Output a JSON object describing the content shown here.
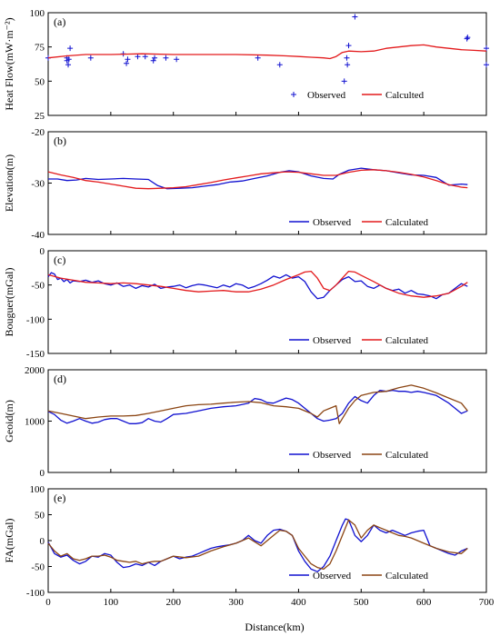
{
  "figure": {
    "xlabel": "Distance(km)",
    "xticks": [
      "0",
      "100",
      "200",
      "300",
      "400",
      "500",
      "600",
      "700"
    ]
  },
  "colors": {
    "observed": "#1010d0",
    "calculated_red": "#e31a1c",
    "calculated_brown": "#8b4513",
    "axis": "#000000"
  },
  "chart_data": [
    {
      "panel": "(a)",
      "type": "scatter",
      "ylabel": "Heat Flow(mW·m⁻²)",
      "xlim": [
        0,
        700
      ],
      "ylim": [
        25,
        100
      ],
      "yticks": [
        25,
        50,
        75,
        100
      ],
      "legend_position": "lower-right",
      "series": [
        {
          "name": "Observed",
          "marker": "plus",
          "color": "#1010d0",
          "x": [
            0,
            30,
            30,
            32,
            33,
            35,
            68,
            120,
            125,
            127,
            143,
            155,
            168,
            170,
            188,
            205,
            335,
            370,
            473,
            477,
            478,
            480,
            490,
            669,
            670,
            700,
            700
          ],
          "y": [
            67,
            67,
            65,
            62,
            66,
            74,
            67,
            70,
            63,
            66,
            68,
            68,
            65,
            67,
            67,
            66,
            67,
            62,
            50,
            67,
            62,
            76,
            97,
            81,
            82,
            74,
            62
          ]
        },
        {
          "name": "Calculted",
          "type": "line",
          "color": "#e31a1c",
          "x": [
            0,
            30,
            60,
            100,
            150,
            200,
            250,
            300,
            350,
            380,
            400,
            420,
            440,
            450,
            460,
            470,
            480,
            500,
            520,
            540,
            560,
            580,
            600,
            620,
            640,
            660,
            680,
            700
          ],
          "y": [
            67,
            68.5,
            69.5,
            69.5,
            70,
            69.5,
            69.5,
            69.5,
            69,
            68.5,
            68,
            67.5,
            67,
            66.5,
            68,
            71,
            72,
            71.5,
            72,
            74,
            75,
            76,
            76.5,
            75,
            74,
            73,
            72.5,
            72
          ]
        }
      ]
    },
    {
      "panel": "(b)",
      "type": "line",
      "ylabel": "Elevation(m)",
      "xlim": [
        0,
        700
      ],
      "ylim": [
        -40,
        -20
      ],
      "yticks": [
        -40,
        -30,
        -20
      ],
      "legend_position": "lower-right",
      "series": [
        {
          "name": "Observed",
          "color": "#1010d0",
          "x": [
            0,
            15,
            30,
            45,
            60,
            80,
            100,
            120,
            140,
            160,
            175,
            190,
            210,
            230,
            250,
            270,
            290,
            310,
            330,
            350,
            370,
            385,
            400,
            420,
            440,
            455,
            465,
            480,
            500,
            520,
            540,
            560,
            580,
            600,
            620,
            640,
            660,
            670
          ],
          "y": [
            -29.2,
            -29.2,
            -29.5,
            -29.4,
            -29.1,
            -29.3,
            -29.2,
            -29.1,
            -29.2,
            -29.3,
            -30.5,
            -31.1,
            -31.0,
            -30.9,
            -30.6,
            -30.3,
            -29.8,
            -29.6,
            -29.1,
            -28.6,
            -27.9,
            -27.6,
            -27.8,
            -28.6,
            -29.1,
            -29.2,
            -28.3,
            -27.5,
            -27.1,
            -27.4,
            -27.6,
            -28.0,
            -28.4,
            -28.5,
            -28.9,
            -30.4,
            -30.2,
            -30.3
          ]
        },
        {
          "name": "Calculated",
          "color": "#e31a1c",
          "x": [
            0,
            20,
            40,
            60,
            80,
            100,
            120,
            140,
            160,
            180,
            200,
            220,
            240,
            260,
            280,
            300,
            320,
            340,
            360,
            380,
            400,
            420,
            440,
            460,
            480,
            500,
            520,
            540,
            560,
            580,
            600,
            620,
            640,
            660,
            670
          ],
          "y": [
            -27.8,
            -28.4,
            -28.9,
            -29.5,
            -29.8,
            -30.2,
            -30.6,
            -31.0,
            -31.1,
            -31.0,
            -30.9,
            -30.7,
            -30.3,
            -29.9,
            -29.4,
            -29.0,
            -28.6,
            -28.2,
            -28.0,
            -27.8,
            -27.9,
            -28.2,
            -28.5,
            -28.5,
            -27.9,
            -27.5,
            -27.4,
            -27.6,
            -27.9,
            -28.3,
            -28.8,
            -29.5,
            -30.3,
            -30.8,
            -30.9
          ]
        }
      ]
    },
    {
      "panel": "(c)",
      "type": "line",
      "ylabel": "Bouguer(mGal)",
      "xlim": [
        0,
        700
      ],
      "ylim": [
        -150,
        0
      ],
      "yticks": [
        -150,
        -100,
        -50,
        0
      ],
      "legend_position": "lower-right",
      "series": [
        {
          "name": "Observed",
          "color": "#1010d0",
          "x": [
            0,
            5,
            10,
            15,
            20,
            25,
            30,
            35,
            40,
            50,
            60,
            70,
            80,
            90,
            100,
            110,
            120,
            130,
            140,
            150,
            160,
            170,
            180,
            190,
            200,
            210,
            220,
            230,
            240,
            250,
            260,
            270,
            280,
            290,
            300,
            310,
            320,
            330,
            340,
            350,
            360,
            370,
            380,
            390,
            400,
            410,
            420,
            430,
            440,
            450,
            460,
            470,
            480,
            490,
            500,
            510,
            520,
            530,
            540,
            550,
            560,
            570,
            580,
            590,
            600,
            610,
            620,
            630,
            640,
            650,
            660,
            670
          ],
          "y": [
            -38,
            -32,
            -34,
            -42,
            -40,
            -45,
            -42,
            -47,
            -44,
            -45,
            -43,
            -46,
            -44,
            -48,
            -50,
            -47,
            -52,
            -50,
            -55,
            -51,
            -53,
            -49,
            -55,
            -53,
            -52,
            -50,
            -54,
            -51,
            -49,
            -50,
            -52,
            -54,
            -50,
            -53,
            -48,
            -50,
            -55,
            -52,
            -48,
            -43,
            -37,
            -40,
            -35,
            -40,
            -38,
            -45,
            -60,
            -70,
            -68,
            -58,
            -50,
            -42,
            -38,
            -45,
            -44,
            -52,
            -55,
            -50,
            -55,
            -58,
            -56,
            -62,
            -58,
            -63,
            -64,
            -66,
            -70,
            -64,
            -62,
            -55,
            -48,
            -52
          ]
        },
        {
          "name": "Calculated",
          "color": "#e31a1c",
          "x": [
            0,
            20,
            40,
            60,
            80,
            100,
            120,
            140,
            160,
            180,
            200,
            220,
            240,
            260,
            280,
            300,
            320,
            340,
            360,
            380,
            400,
            410,
            420,
            430,
            440,
            450,
            460,
            470,
            480,
            490,
            500,
            520,
            540,
            560,
            580,
            600,
            620,
            640,
            660,
            670
          ],
          "y": [
            -35,
            -40,
            -43,
            -46,
            -47,
            -48,
            -47,
            -48,
            -50,
            -52,
            -55,
            -58,
            -60,
            -59,
            -58,
            -60,
            -60,
            -56,
            -50,
            -42,
            -35,
            -31,
            -30,
            -40,
            -55,
            -58,
            -50,
            -40,
            -30,
            -31,
            -36,
            -45,
            -55,
            -62,
            -66,
            -68,
            -66,
            -62,
            -52,
            -46
          ]
        }
      ]
    },
    {
      "panel": "(d)",
      "type": "line",
      "ylabel": "Geoid(m)",
      "xlim": [
        0,
        700
      ],
      "ylim": [
        0,
        2000
      ],
      "yticks": [
        0,
        1000,
        2000
      ],
      "legend_position": "lower-right",
      "series": [
        {
          "name": "Observed",
          "color": "#1010d0",
          "x": [
            0,
            10,
            20,
            30,
            40,
            50,
            60,
            70,
            80,
            90,
            100,
            110,
            120,
            130,
            140,
            150,
            160,
            170,
            180,
            190,
            200,
            220,
            240,
            260,
            280,
            300,
            320,
            330,
            340,
            350,
            360,
            370,
            380,
            390,
            400,
            410,
            420,
            430,
            440,
            450,
            460,
            470,
            480,
            490,
            500,
            510,
            520,
            530,
            540,
            550,
            560,
            570,
            580,
            590,
            600,
            620,
            640,
            660,
            670
          ],
          "y": [
            1190,
            1130,
            1020,
            960,
            1000,
            1050,
            1000,
            960,
            980,
            1030,
            1050,
            1050,
            1000,
            950,
            950,
            970,
            1050,
            1000,
            980,
            1050,
            1130,
            1150,
            1200,
            1250,
            1280,
            1300,
            1350,
            1440,
            1420,
            1360,
            1350,
            1400,
            1450,
            1420,
            1350,
            1250,
            1150,
            1050,
            1000,
            1020,
            1050,
            1150,
            1350,
            1480,
            1400,
            1350,
            1500,
            1600,
            1580,
            1600,
            1580,
            1580,
            1560,
            1580,
            1560,
            1500,
            1350,
            1150,
            1200
          ]
        },
        {
          "name": "Calculated",
          "color": "#8b4513",
          "x": [
            0,
            20,
            40,
            60,
            80,
            100,
            120,
            140,
            160,
            180,
            200,
            220,
            240,
            260,
            280,
            300,
            320,
            340,
            360,
            380,
            400,
            420,
            430,
            440,
            450,
            460,
            465,
            470,
            480,
            490,
            500,
            520,
            540,
            560,
            580,
            600,
            620,
            640,
            660,
            670
          ],
          "y": [
            1200,
            1150,
            1100,
            1050,
            1080,
            1100,
            1100,
            1110,
            1150,
            1200,
            1250,
            1300,
            1320,
            1330,
            1350,
            1370,
            1380,
            1360,
            1300,
            1280,
            1250,
            1150,
            1080,
            1200,
            1250,
            1300,
            950,
            1050,
            1250,
            1400,
            1500,
            1560,
            1580,
            1650,
            1700,
            1640,
            1550,
            1450,
            1350,
            1200
          ]
        }
      ]
    },
    {
      "panel": "(e)",
      "type": "line",
      "ylabel": "FA(mGal)",
      "xlim": [
        0,
        700
      ],
      "ylim": [
        -100,
        100
      ],
      "yticks": [
        -100,
        -50,
        0,
        50,
        100
      ],
      "legend_position": "lower-right",
      "series": [
        {
          "name": "Observed",
          "color": "#1010d0",
          "x": [
            0,
            10,
            20,
            30,
            40,
            50,
            60,
            70,
            80,
            90,
            100,
            110,
            120,
            130,
            140,
            150,
            160,
            170,
            180,
            190,
            200,
            210,
            220,
            230,
            240,
            250,
            260,
            270,
            280,
            290,
            300,
            310,
            320,
            330,
            340,
            350,
            360,
            370,
            380,
            390,
            400,
            410,
            420,
            430,
            440,
            450,
            460,
            470,
            475,
            480,
            490,
            500,
            510,
            520,
            530,
            540,
            550,
            560,
            570,
            580,
            590,
            600,
            610,
            620,
            630,
            640,
            650,
            660,
            670
          ],
          "y": [
            -3,
            -25,
            -32,
            -28,
            -38,
            -45,
            -40,
            -30,
            -32,
            -25,
            -28,
            -42,
            -52,
            -50,
            -45,
            -48,
            -42,
            -48,
            -40,
            -35,
            -30,
            -35,
            -32,
            -30,
            -25,
            -20,
            -15,
            -12,
            -10,
            -8,
            -5,
            0,
            10,
            0,
            -5,
            10,
            20,
            22,
            18,
            10,
            -20,
            -40,
            -55,
            -60,
            -50,
            -30,
            0,
            30,
            42,
            40,
            10,
            -2,
            10,
            30,
            20,
            15,
            20,
            15,
            10,
            15,
            18,
            20,
            -10,
            -15,
            -20,
            -25,
            -28,
            -20,
            -15
          ]
        },
        {
          "name": "Calculated",
          "color": "#8b4513",
          "x": [
            0,
            10,
            20,
            30,
            40,
            50,
            60,
            70,
            80,
            90,
            100,
            110,
            120,
            130,
            140,
            150,
            160,
            170,
            180,
            190,
            200,
            220,
            240,
            260,
            280,
            300,
            320,
            340,
            360,
            370,
            380,
            390,
            400,
            410,
            420,
            430,
            440,
            450,
            460,
            470,
            480,
            490,
            500,
            510,
            520,
            530,
            540,
            550,
            560,
            570,
            580,
            590,
            600,
            620,
            640,
            660,
            670
          ],
          "y": [
            -5,
            -20,
            -30,
            -25,
            -35,
            -38,
            -35,
            -30,
            -30,
            -28,
            -32,
            -38,
            -40,
            -42,
            -40,
            -45,
            -42,
            -40,
            -40,
            -35,
            -30,
            -33,
            -30,
            -20,
            -12,
            -5,
            5,
            -10,
            10,
            20,
            18,
            10,
            -15,
            -30,
            -45,
            -52,
            -55,
            -45,
            -20,
            10,
            40,
            30,
            5,
            20,
            30,
            25,
            20,
            15,
            10,
            8,
            5,
            0,
            -5,
            -15,
            -22,
            -25,
            -15
          ]
        }
      ]
    }
  ]
}
